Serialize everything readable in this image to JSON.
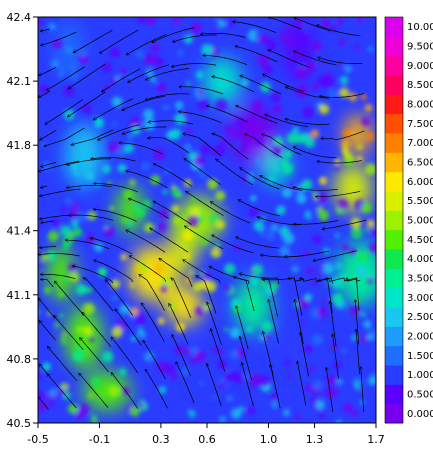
{
  "chart_data": {
    "type": "heatmap",
    "title": "",
    "xlabel": "",
    "ylabel": "",
    "xlim": [
      -0.5,
      1.7
    ],
    "ylim": [
      40.5,
      42.4
    ],
    "x_ticks": [
      "-0.5",
      "-0.1",
      "0.3",
      "0.6",
      "1.0",
      "1.3",
      "1.7"
    ],
    "y_ticks": [
      "40.5",
      "40.8",
      "41.1",
      "41.4",
      "41.8",
      "42.1",
      "42.4"
    ],
    "overlay": "streamlines with arrowheads (black)",
    "grid": false,
    "legend": "colorbar right",
    "colorbar": {
      "levels": [
        "0.000",
        "0.500",
        "1.000",
        "1.500",
        "2.000",
        "2.500",
        "3.000",
        "3.500",
        "4.000",
        "4.500",
        "5.000",
        "5.500",
        "6.000",
        "6.500",
        "7.000",
        "7.500",
        "8.000",
        "8.500",
        "9.000",
        "9.500",
        "10.00"
      ],
      "colors": [
        "#7700ee",
        "#5a00ff",
        "#2a3cff",
        "#1e6eff",
        "#1e9bff",
        "#18c8f0",
        "#00e6c8",
        "#00f096",
        "#10e850",
        "#50f000",
        "#9cf000",
        "#d8f000",
        "#ffe800",
        "#ffb400",
        "#ff8000",
        "#ff5000",
        "#ff1a1a",
        "#ff0060",
        "#ff00a0",
        "#f000d8",
        "#dc00f0"
      ]
    },
    "field_hotspots": [
      {
        "x": 1.58,
        "y": 41.85,
        "value": 6.5
      },
      {
        "x": 1.55,
        "y": 41.6,
        "value": 5.5
      },
      {
        "x": 0.25,
        "y": 41.2,
        "value": 6.0
      },
      {
        "x": 0.45,
        "y": 41.35,
        "value": 5.5
      },
      {
        "x": 0.45,
        "y": 41.05,
        "value": 6.0
      },
      {
        "x": 0.55,
        "y": 41.45,
        "value": 5.0
      },
      {
        "x": -0.35,
        "y": 41.2,
        "value": 4.5
      },
      {
        "x": -0.2,
        "y": 40.9,
        "value": 4.8
      },
      {
        "x": -0.05,
        "y": 40.65,
        "value": 4.5
      },
      {
        "x": 0.1,
        "y": 41.5,
        "value": 4.5
      },
      {
        "x": 0.9,
        "y": 41.05,
        "value": 3.5
      },
      {
        "x": 1.6,
        "y": 41.2,
        "value": 3.5
      },
      {
        "x": 1.05,
        "y": 41.7,
        "value": 3.0
      },
      {
        "x": 0.7,
        "y": 42.1,
        "value": 3.0
      },
      {
        "x": 0.9,
        "y": 41.85,
        "value": 0.3
      },
      {
        "x": 1.2,
        "y": 42.25,
        "value": 0.5
      },
      {
        "x": 0.6,
        "y": 40.75,
        "value": 1.2
      },
      {
        "x": 1.2,
        "y": 40.85,
        "value": 1.0
      },
      {
        "x": -0.3,
        "y": 42.25,
        "value": 1.5
      },
      {
        "x": -0.2,
        "y": 41.75,
        "value": 2.5
      }
    ]
  }
}
